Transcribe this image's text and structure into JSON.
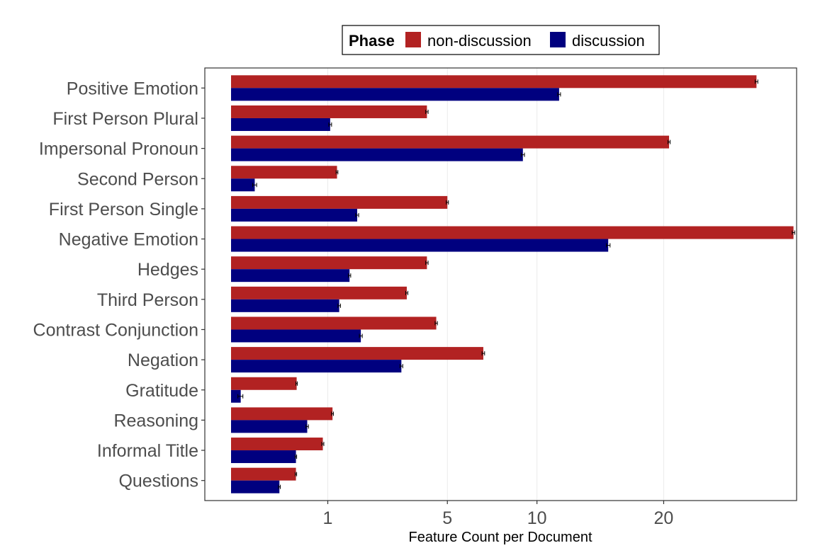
{
  "chart_data": {
    "type": "bar",
    "orientation": "horizontal",
    "x_scale": "sqrt",
    "categories": [
      "Positive Emotion",
      "First Person Plural",
      "Impersonal Pronoun",
      "Second Person",
      "First Person Single",
      "Negative Emotion",
      "Hedges",
      "Third Person",
      "Contrast Conjunction",
      "Negation",
      "Gratitude",
      "Reasoning",
      "Informal Title",
      "Questions"
    ],
    "series": [
      {
        "name": "non-discussion",
        "color": "#b22222",
        "values": [
          29.5,
          4.1,
          20.5,
          1.2,
          5.0,
          33.8,
          4.1,
          3.3,
          4.5,
          6.8,
          0.46,
          1.1,
          0.9,
          0.45
        ],
        "errors": [
          0.15,
          0.05,
          0.1,
          0.02,
          0.05,
          0.15,
          0.05,
          0.04,
          0.05,
          0.07,
          0.01,
          0.02,
          0.02,
          0.01
        ]
      },
      {
        "name": "discussion",
        "color": "#00007f",
        "values": [
          11.5,
          1.05,
          9.1,
          0.06,
          1.7,
          15.2,
          1.5,
          1.25,
          1.8,
          3.1,
          0.01,
          0.62,
          0.45,
          0.25
        ],
        "errors": [
          0.1,
          0.03,
          0.1,
          0.01,
          0.04,
          0.15,
          0.03,
          0.03,
          0.04,
          0.05,
          0.005,
          0.02,
          0.01,
          0.01
        ]
      }
    ],
    "x_ticks": [
      1,
      5,
      10,
      20
    ],
    "x_tick_labels": [
      "1",
      "5",
      "10",
      "20"
    ],
    "xlabel": "Feature Count per Document",
    "ylabel": "",
    "legend_title": "Phase",
    "legend_position": "top",
    "grid": true
  }
}
